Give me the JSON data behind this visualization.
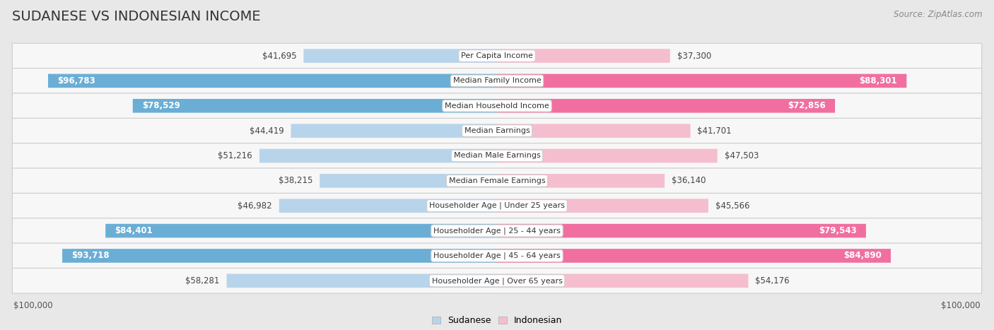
{
  "title": "SUDANESE VS INDONESIAN INCOME",
  "source": "Source: ZipAtlas.com",
  "max_value": 100000,
  "categories": [
    "Per Capita Income",
    "Median Family Income",
    "Median Household Income",
    "Median Earnings",
    "Median Male Earnings",
    "Median Female Earnings",
    "Householder Age | Under 25 years",
    "Householder Age | 25 - 44 years",
    "Householder Age | 45 - 64 years",
    "Householder Age | Over 65 years"
  ],
  "sudanese": [
    41695,
    96783,
    78529,
    44419,
    51216,
    38215,
    46982,
    84401,
    93718,
    58281
  ],
  "indonesian": [
    37300,
    88301,
    72856,
    41701,
    47503,
    36140,
    45566,
    79543,
    84890,
    54176
  ],
  "sudanese_color_light": "#b8d4ea",
  "sudanese_color_dark": "#6aaed6",
  "indonesian_color_light": "#f5bece",
  "indonesian_color_dark": "#f06fa0",
  "bg_color": "#e8e8e8",
  "row_bg_color": "#f7f7f7",
  "label_box_color": "#ffffff",
  "title_fontsize": 14,
  "source_fontsize": 8.5,
  "bar_label_fontsize": 8.5,
  "cat_label_fontsize": 8,
  "legend_fontsize": 9,
  "axis_label_fontsize": 8.5,
  "sudanese_threshold": 65000,
  "indonesian_threshold": 65000
}
